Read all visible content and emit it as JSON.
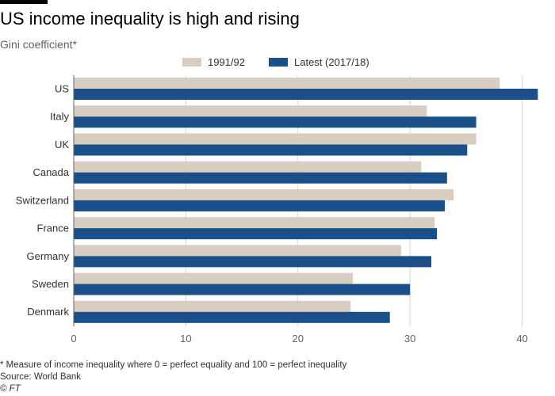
{
  "header": {
    "title": "US income inequality is high and rising",
    "subtitle": "Gini coefficient*"
  },
  "footer": {
    "footnote": "* Measure of income inequality where 0 = perfect equality and 100 = perfect inequality",
    "source": "Source: World Bank",
    "credit": "© FT"
  },
  "colors": {
    "accent_rule": "#000000",
    "series_1991": "#d9ccc1",
    "series_latest": "#1a4f8a",
    "grid": "#d7d3cf",
    "axis": "#66605c"
  },
  "chart_data": {
    "type": "bar",
    "orientation": "horizontal",
    "title": "US income inequality is high and rising",
    "subtitle": "Gini coefficient*",
    "categories": [
      "US",
      "Italy",
      "UK",
      "Canada",
      "Switzerland",
      "France",
      "Germany",
      "Sweden",
      "Denmark"
    ],
    "series": [
      {
        "name": "1991/92",
        "color": "#d9ccc1",
        "values": [
          38.0,
          31.5,
          35.9,
          31.0,
          33.9,
          32.2,
          29.2,
          24.9,
          24.7
        ]
      },
      {
        "name": "Latest (2017/18)",
        "color": "#1a4f8a",
        "values": [
          41.4,
          35.9,
          35.1,
          33.3,
          33.1,
          32.4,
          31.9,
          30.0,
          28.2
        ]
      }
    ],
    "xlim": [
      0,
      41.8
    ],
    "xticks": [
      "0",
      "10",
      "20",
      "30",
      "40"
    ],
    "xlabel": "",
    "ylabel": "",
    "grid": "vertical",
    "legend": "top-center"
  }
}
